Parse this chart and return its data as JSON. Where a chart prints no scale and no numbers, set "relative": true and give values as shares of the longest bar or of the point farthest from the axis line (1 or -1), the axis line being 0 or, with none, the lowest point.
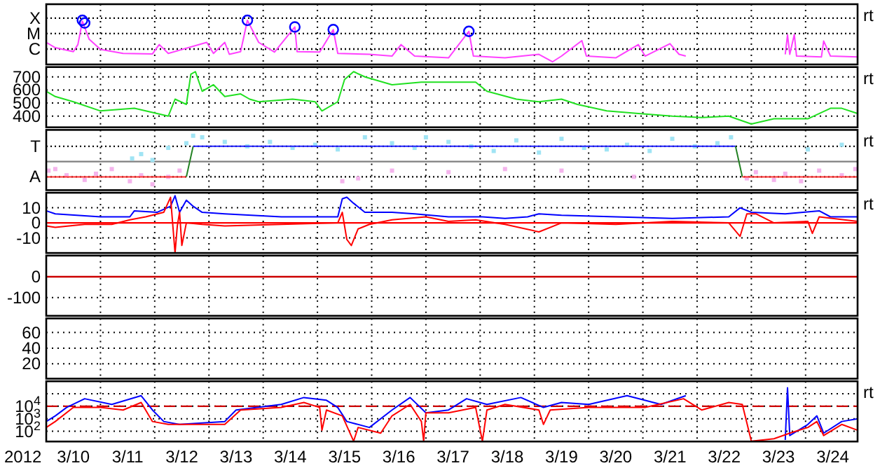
{
  "chart_data": [
    {
      "type": "line",
      "relative": true,
      "grid": "x",
      "tick_labels": false,
      "xlim": [
        "2012-03-10T00:00",
        "2012-03-24T23:00"
      ],
      "xticks": [
        {
          "value": "2012-03-11T00:00",
          "label": null
        },
        {
          "value": "2012-03-12T00:00",
          "label": null
        },
        {
          "value": "2012-03-13T00:00",
          "label": null
        },
        {
          "value": "2012-03-14T00:00",
          "label": null
        },
        {
          "value": "2012-03-15T00:00",
          "label": null
        },
        {
          "value": "2012-03-16T00:00",
          "label": null
        },
        {
          "value": "2012-03-17T00:00",
          "label": null
        },
        {
          "value": "2012-03-18T00:00",
          "label": null
        },
        {
          "value": "2012-03-19T00:00",
          "label": null
        },
        {
          "value": "2012-03-20T00:00",
          "label": null
        },
        {
          "value": "2012-03-21T00:00",
          "label": null
        },
        {
          "value": "2012-03-22T00:00",
          "label": null
        },
        {
          "value": "2012-03-23T00:00",
          "label": null
        },
        {
          "value": "2012-03-24T00:00",
          "label": null
        }
      ],
      "annotations": [
        "rt"
      ],
      "ref_lines": [
        {
          "axis": "y",
          "value": 0.35,
          "label": "C",
          "color": "#000000",
          "line_style": "dotted"
        },
        {
          "axis": "y",
          "value": 0.7,
          "label": "M",
          "color": "#000000",
          "line_style": "dotted"
        },
        {
          "axis": "y",
          "value": 1.05,
          "label": "X",
          "color": "#000000",
          "line_style": "dotted"
        }
      ],
      "series": [
        {
          "color": "#ff40ff",
          "x": [
            "2012-03-10T00:00",
            "2012-03-10T04:00",
            "2012-03-10T12:00",
            "2012-03-10T14:00",
            "2012-03-10T16:00",
            "2012-03-10T19:00",
            "2012-03-11T00:00",
            "2012-03-11T10:00",
            "2012-03-11T23:00",
            "2012-03-12T02:00",
            "2012-03-12T06:00",
            "2012-03-12T23:00",
            "2012-03-13T02:00",
            "2012-03-13T07:00",
            "2012-03-13T09:00",
            "2012-03-13T14:00",
            "2012-03-13T17:00",
            "2012-03-13T22:00",
            "2012-03-14T05:00",
            "2012-03-14T14:00",
            "2012-03-14T15:00",
            "2012-03-15T01:00",
            "2012-03-15T07:00",
            "2012-03-15T09:00",
            "2012-03-15T23:00",
            "2012-03-16T09:00",
            "2012-03-16T13:00",
            "2012-03-16T19:00",
            "2012-03-17T10:00",
            "2012-03-17T19:00",
            "2012-03-17T21:00",
            "2012-03-18T11:00",
            "2012-03-19T02:00",
            "2012-03-19T08:00",
            "2012-03-19T12:00",
            "2012-03-19T21:00",
            "2012-03-19T23:00",
            "2012-03-20T12:00",
            "2012-03-20T22:00",
            "2012-03-21T01:00",
            "2012-03-21T12:00",
            "2012-03-21T16:00",
            "2012-03-21T19:00",
            "2012-03-22T14:00",
            "2012-03-23T15:00",
            "2012-03-23T16:00",
            "2012-03-23T17:00",
            "2012-03-23T19:00",
            "2012-03-23T20:00",
            "2012-03-24T07:00",
            "2012-03-24T08:00",
            "2012-03-24T11:00",
            "2012-03-24T23:00"
          ],
          "values": [
            0.5,
            0.38,
            0.29,
            0.45,
            0.98,
            0.57,
            0.34,
            0.25,
            0.24,
            0.45,
            0.25,
            0.5,
            0.25,
            0.5,
            0.23,
            0.29,
            1,
            0.5,
            0.28,
            0.85,
            0.29,
            0.28,
            0.79,
            0.25,
            0.23,
            0.19,
            0.45,
            0.19,
            0.15,
            0.75,
            0.19,
            0.15,
            0.23,
            0.06,
            0.19,
            0.54,
            0.19,
            0.15,
            0.45,
            0.19,
            0.47,
            0.23,
            0.19,
            null,
            0.23,
            0.67,
            0.23,
            0.68,
            0.19,
            0.17,
            0.53,
            0.19,
            0.17
          ]
        },
        {
          "type": "scatter",
          "marker": "circle",
          "color": "#0000ff",
          "x": [
            "2012-03-10T16:00",
            "2012-03-10T17:00",
            "2012-03-13T17:00",
            "2012-03-14T14:00",
            "2012-03-15T07:00",
            "2012-03-17T19:00"
          ],
          "values": [
            1,
            0.94,
            1,
            0.85,
            0.79,
            0.75
          ]
        }
      ]
    },
    {
      "type": "line",
      "grid": true,
      "tick_labels": "y",
      "xlim": [
        "2012-03-10T00:00",
        "2012-03-24T23:00"
      ],
      "xticks": [
        {
          "value": "2012-03-11T00:00",
          "label": null
        },
        {
          "value": "2012-03-12T00:00",
          "label": null
        },
        {
          "value": "2012-03-13T00:00",
          "label": null
        },
        {
          "value": "2012-03-14T00:00",
          "label": null
        },
        {
          "value": "2012-03-15T00:00",
          "label": null
        },
        {
          "value": "2012-03-16T00:00",
          "label": null
        },
        {
          "value": "2012-03-17T00:00",
          "label": null
        },
        {
          "value": "2012-03-18T00:00",
          "label": null
        },
        {
          "value": "2012-03-19T00:00",
          "label": null
        },
        {
          "value": "2012-03-20T00:00",
          "label": null
        },
        {
          "value": "2012-03-21T00:00",
          "label": null
        },
        {
          "value": "2012-03-22T00:00",
          "label": null
        },
        {
          "value": "2012-03-23T00:00",
          "label": null
        },
        {
          "value": "2012-03-24T00:00",
          "label": null
        }
      ],
      "ylim": [
        315,
        775
      ],
      "yticks": [
        400,
        500,
        600,
        700
      ],
      "annotations": [
        "rt"
      ],
      "series": [
        {
          "color": "#20e020",
          "x": [
            "2012-03-10T00:00",
            "2012-03-10T04:00",
            "2012-03-10T12:00",
            "2012-03-11T00:00",
            "2012-03-11T15:00",
            "2012-03-12T01:00",
            "2012-03-12T06:00",
            "2012-03-12T09:00",
            "2012-03-12T14:00",
            "2012-03-12T16:00",
            "2012-03-12T18:00",
            "2012-03-12T21:00",
            "2012-03-13T02:00",
            "2012-03-13T07:00",
            "2012-03-13T14:00",
            "2012-03-13T18:00",
            "2012-03-13T22:00",
            "2012-03-14T13:00",
            "2012-03-14T23:00",
            "2012-03-15T02:00",
            "2012-03-15T09:00",
            "2012-03-15T12:00",
            "2012-03-15T16:00",
            "2012-03-15T21:00",
            "2012-03-16T09:00",
            "2012-03-16T22:00",
            "2012-03-17T10:00",
            "2012-03-17T22:00",
            "2012-03-18T03:00",
            "2012-03-18T16:00",
            "2012-03-19T02:00",
            "2012-03-19T12:00",
            "2012-03-19T19:00",
            "2012-03-20T08:00",
            "2012-03-20T22:00",
            "2012-03-21T13:00",
            "2012-03-22T02:00",
            "2012-03-22T14:00",
            "2012-03-23T00:00",
            "2012-03-23T10:00",
            "2012-03-24T01:00",
            "2012-03-24T11:00",
            "2012-03-24T16:00",
            "2012-03-24T23:00"
          ],
          "values": [
            590,
            550,
            510,
            440,
            460,
            420,
            400,
            530,
            490,
            720,
            740,
            590,
            640,
            550,
            570,
            530,
            510,
            530,
            510,
            440,
            510,
            680,
            740,
            700,
            640,
            660,
            660,
            660,
            590,
            530,
            510,
            530,
            490,
            440,
            420,
            400,
            390,
            400,
            340,
            380,
            380,
            460,
            460,
            420
          ]
        }
      ]
    },
    {
      "type": "line",
      "relative": true,
      "grid": "x",
      "tick_labels": false,
      "xlim": [
        "2012-03-10T00:00",
        "2012-03-24T23:00"
      ],
      "xticks": [
        {
          "value": "2012-03-11T00:00",
          "label": null
        },
        {
          "value": "2012-03-12T00:00",
          "label": null
        },
        {
          "value": "2012-03-13T00:00",
          "label": null
        },
        {
          "value": "2012-03-14T00:00",
          "label": null
        },
        {
          "value": "2012-03-15T00:00",
          "label": null
        },
        {
          "value": "2012-03-16T00:00",
          "label": null
        },
        {
          "value": "2012-03-17T00:00",
          "label": null
        },
        {
          "value": "2012-03-18T00:00",
          "label": null
        },
        {
          "value": "2012-03-19T00:00",
          "label": null
        },
        {
          "value": "2012-03-20T00:00",
          "label": null
        },
        {
          "value": "2012-03-21T00:00",
          "label": null
        },
        {
          "value": "2012-03-22T00:00",
          "label": null
        },
        {
          "value": "2012-03-23T00:00",
          "label": null
        },
        {
          "value": "2012-03-24T00:00",
          "label": null
        }
      ],
      "annotations": [
        "rt"
      ],
      "ref_lines": [
        {
          "axis": "y",
          "value": 0,
          "color": "#808080"
        },
        {
          "axis": "y",
          "value": 0.59,
          "label": "T",
          "color": "#000000",
          "line_style": "dotted"
        },
        {
          "axis": "y",
          "value": -0.59,
          "label": "A",
          "color": "#000000",
          "line_style": "dotted"
        }
      ],
      "series": [
        {
          "type": "scatter",
          "marker": "square",
          "color": "#a0e4f4",
          "x": [
            "2012-03-11T14:00",
            "2012-03-11T18:00",
            "2012-03-11T23:00",
            "2012-03-12T06:00",
            "2012-03-12T14:00",
            "2012-03-12T17:00",
            "2012-03-12T21:00",
            "2012-03-13T07:00",
            "2012-03-13T17:00",
            "2012-03-14T03:00",
            "2012-03-14T13:00",
            "2012-03-14T23:00",
            "2012-03-15T09:00",
            "2012-03-15T21:00",
            "2012-03-16T09:00",
            "2012-03-16T19:00",
            "2012-03-17T00:00",
            "2012-03-17T10:00",
            "2012-03-17T20:00",
            "2012-03-18T06:00",
            "2012-03-18T16:00",
            "2012-03-19T02:00",
            "2012-03-19T12:00",
            "2012-03-19T22:00",
            "2012-03-20T08:00",
            "2012-03-20T17:00",
            "2012-03-21T03:00",
            "2012-03-21T13:00",
            "2012-03-21T23:00",
            "2012-03-22T09:00",
            "2012-03-22T15:00",
            "2012-03-24T01:00",
            "2012-03-24T16:00"
          ],
          "values": [
            0.12,
            0.29,
            0.06,
            0.53,
            0.71,
            1,
            0.94,
            0.76,
            0.59,
            0.76,
            0.53,
            0.65,
            0.47,
            0.94,
            0.71,
            0.53,
            0.94,
            0.76,
            0.59,
            0.41,
            0.82,
            0.35,
            0.88,
            0.53,
            0.47,
            0.65,
            0.41,
            0.88,
            0.59,
            0.71,
            0.94,
            0.47,
            0.65
          ]
        },
        {
          "type": "scatter",
          "marker": "square",
          "color": "#f4b4ec",
          "x": [
            "2012-03-10T01:00",
            "2012-03-10T04:00",
            "2012-03-10T09:00",
            "2012-03-10T17:00",
            "2012-03-10T22:00",
            "2012-03-11T05:00",
            "2012-03-11T13:00",
            "2012-03-11T18:00",
            "2012-03-11T23:00",
            "2012-03-12T06:00",
            "2012-03-12T11:00",
            "2012-03-15T11:00",
            "2012-03-15T18:00",
            "2012-03-16T09:00",
            "2012-03-17T10:00",
            "2012-03-18T11:00",
            "2012-03-19T12:00",
            "2012-03-20T20:00",
            "2012-03-22T22:00",
            "2012-03-23T02:00",
            "2012-03-23T10:00",
            "2012-03-23T15:00",
            "2012-03-23T22:00",
            "2012-03-24T06:00",
            "2012-03-24T16:00",
            "2012-03-24T22:00"
          ],
          "values": [
            -0.35,
            -0.29,
            -0.53,
            -0.71,
            -0.47,
            -0.29,
            -0.76,
            -0.53,
            -0.88,
            -0.59,
            -0.35,
            -0.76,
            -0.65,
            -0.35,
            -0.41,
            -0.29,
            -0.35,
            -0.59,
            -0.65,
            -0.41,
            -0.71,
            -0.47,
            -0.76,
            -0.35,
            -0.53,
            -0.29
          ]
        },
        {
          "color": "#ff3030",
          "x": [
            "2012-03-10T00:00",
            "2012-03-12T14:00"
          ],
          "values": [
            -0.59,
            -0.59
          ]
        },
        {
          "color": "#208020",
          "x": [
            "2012-03-12T14:00",
            "2012-03-12T17:00"
          ],
          "values": [
            -0.59,
            0.59
          ]
        },
        {
          "color": "#2020ff",
          "x": [
            "2012-03-12T17:00",
            "2012-03-22T17:00"
          ],
          "values": [
            0.59,
            0.59
          ]
        },
        {
          "color": "#208020",
          "x": [
            "2012-03-22T17:00",
            "2012-03-22T20:00"
          ],
          "values": [
            0.59,
            -0.59
          ]
        },
        {
          "color": "#ff3030",
          "x": [
            "2012-03-22T20:00",
            "2012-03-24T23:00"
          ],
          "values": [
            -0.59,
            -0.59
          ]
        }
      ]
    },
    {
      "type": "line",
      "grid": true,
      "tick_labels": "y",
      "xlim": [
        "2012-03-10T00:00",
        "2012-03-24T23:00"
      ],
      "xticks": [
        {
          "value": "2012-03-11T00:00",
          "label": null
        },
        {
          "value": "2012-03-12T00:00",
          "label": null
        },
        {
          "value": "2012-03-13T00:00",
          "label": null
        },
        {
          "value": "2012-03-14T00:00",
          "label": null
        },
        {
          "value": "2012-03-15T00:00",
          "label": null
        },
        {
          "value": "2012-03-16T00:00",
          "label": null
        },
        {
          "value": "2012-03-17T00:00",
          "label": null
        },
        {
          "value": "2012-03-18T00:00",
          "label": null
        },
        {
          "value": "2012-03-19T00:00",
          "label": null
        },
        {
          "value": "2012-03-20T00:00",
          "label": null
        },
        {
          "value": "2012-03-21T00:00",
          "label": null
        },
        {
          "value": "2012-03-22T00:00",
          "label": null
        },
        {
          "value": "2012-03-23T00:00",
          "label": null
        },
        {
          "value": "2012-03-24T00:00",
          "label": null
        }
      ],
      "ylim": [
        -20,
        20
      ],
      "yticks": [
        -10,
        0,
        10
      ],
      "annotations": [
        "rt"
      ],
      "ref_lines": [
        {
          "axis": "y",
          "value": 0,
          "color": "#ff0000"
        }
      ],
      "series": [
        {
          "color": "#0000ff",
          "x": [
            "2012-03-10T00:00",
            "2012-03-10T04:00",
            "2012-03-11T00:00",
            "2012-03-11T13:00",
            "2012-03-11T15:00",
            "2012-03-12T01:00",
            "2012-03-12T07:00",
            "2012-03-12T09:00",
            "2012-03-12T11:00",
            "2012-03-12T14:00",
            "2012-03-12T17:00",
            "2012-03-12T21:00",
            "2012-03-13T07:00",
            "2012-03-14T08:00",
            "2012-03-15T09:00",
            "2012-03-15T11:00",
            "2012-03-15T13:00",
            "2012-03-15T16:00",
            "2012-03-15T21:00",
            "2012-03-16T09:00",
            "2012-03-16T19:00",
            "2012-03-17T10:00",
            "2012-03-18T01:00",
            "2012-03-18T11:00",
            "2012-03-18T21:00",
            "2012-03-19T02:00",
            "2012-03-19T12:00",
            "2012-03-20T12:00",
            "2012-03-21T13:00",
            "2012-03-22T14:00",
            "2012-03-22T19:00",
            "2012-03-23T00:00",
            "2012-03-23T15:00",
            "2012-03-24T06:00",
            "2012-03-24T11:00",
            "2012-03-24T23:00"
          ],
          "values": [
            8,
            6,
            4,
            4,
            8,
            7,
            11,
            18,
            7,
            15,
            11,
            7,
            6,
            4,
            4,
            16,
            17,
            13,
            7,
            7,
            6,
            4,
            4,
            3,
            4,
            6,
            5,
            4,
            3,
            4,
            10,
            7,
            6,
            8,
            4,
            4
          ]
        },
        {
          "color": "#ff0000",
          "x": [
            "2012-03-10T00:00",
            "2012-03-10T04:00",
            "2012-03-10T17:00",
            "2012-03-11T05:00",
            "2012-03-11T13:00",
            "2012-03-11T20:00",
            "2012-03-12T04:00",
            "2012-03-12T07:00",
            "2012-03-12T09:00",
            "2012-03-12T10:00",
            "2012-03-12T11:00",
            "2012-03-12T12:00",
            "2012-03-12T14:00",
            "2012-03-12T21:00",
            "2012-03-13T07:00",
            "2012-03-14T08:00",
            "2012-03-15T09:00",
            "2012-03-15T11:00",
            "2012-03-15T13:00",
            "2012-03-15T15:00",
            "2012-03-15T18:00",
            "2012-03-15T23:00",
            "2012-03-16T09:00",
            "2012-03-17T00:00",
            "2012-03-17T10:00",
            "2012-03-17T22:00",
            "2012-03-18T11:00",
            "2012-03-19T02:00",
            "2012-03-19T12:00",
            "2012-03-20T12:00",
            "2012-03-21T13:00",
            "2012-03-22T14:00",
            "2012-03-22T19:00",
            "2012-03-22T22:00",
            "2012-03-23T02:00",
            "2012-03-23T10:00",
            "2012-03-24T01:00",
            "2012-03-24T03:00",
            "2012-03-24T06:00",
            "2012-03-24T23:00"
          ],
          "values": [
            -2,
            -3,
            -1,
            -1,
            2,
            4,
            7,
            17,
            -20,
            -2,
            7,
            -15,
            0,
            -1,
            -2,
            -1,
            0,
            7,
            -11,
            -15,
            -4,
            -1,
            2,
            4,
            1,
            2,
            -1,
            -6,
            0,
            -1,
            1,
            0,
            -9,
            6,
            6,
            0,
            1,
            -7,
            4,
            1
          ]
        }
      ]
    },
    {
      "type": "line",
      "grid": true,
      "tick_labels": "y",
      "xlim": [
        "2012-03-10T00:00",
        "2012-03-24T23:00"
      ],
      "xticks": [
        {
          "value": "2012-03-11T00:00",
          "label": null
        },
        {
          "value": "2012-03-12T00:00",
          "label": null
        },
        {
          "value": "2012-03-13T00:00",
          "label": null
        },
        {
          "value": "2012-03-14T00:00",
          "label": null
        },
        {
          "value": "2012-03-15T00:00",
          "label": null
        },
        {
          "value": "2012-03-16T00:00",
          "label": null
        },
        {
          "value": "2012-03-17T00:00",
          "label": null
        },
        {
          "value": "2012-03-18T00:00",
          "label": null
        },
        {
          "value": "2012-03-19T00:00",
          "label": null
        },
        {
          "value": "2012-03-20T00:00",
          "label": null
        },
        {
          "value": "2012-03-21T00:00",
          "label": null
        },
        {
          "value": "2012-03-22T00:00",
          "label": null
        },
        {
          "value": "2012-03-23T00:00",
          "label": null
        },
        {
          "value": "2012-03-24T00:00",
          "label": null
        }
      ],
      "ylim": [
        -188,
        102
      ],
      "yticks": [
        -100,
        0
      ],
      "ref_lines": [
        {
          "axis": "y",
          "value": 0,
          "color": "#cc0000"
        }
      ]
    },
    {
      "type": "line",
      "grid": true,
      "tick_labels": "y",
      "xlim": [
        "2012-03-10T00:00",
        "2012-03-24T23:00"
      ],
      "xticks": [
        {
          "value": "2012-03-11T00:00",
          "label": null
        },
        {
          "value": "2012-03-12T00:00",
          "label": null
        },
        {
          "value": "2012-03-13T00:00",
          "label": null
        },
        {
          "value": "2012-03-14T00:00",
          "label": null
        },
        {
          "value": "2012-03-15T00:00",
          "label": null
        },
        {
          "value": "2012-03-16T00:00",
          "label": null
        },
        {
          "value": "2012-03-17T00:00",
          "label": null
        },
        {
          "value": "2012-03-18T00:00",
          "label": null
        },
        {
          "value": "2012-03-19T00:00",
          "label": null
        },
        {
          "value": "2012-03-20T00:00",
          "label": null
        },
        {
          "value": "2012-03-21T00:00",
          "label": null
        },
        {
          "value": "2012-03-22T00:00",
          "label": null
        },
        {
          "value": "2012-03-23T00:00",
          "label": null
        },
        {
          "value": "2012-03-24T00:00",
          "label": null
        }
      ],
      "ylim": [
        1,
        78
      ],
      "yticks": [
        20,
        40,
        60
      ]
    },
    {
      "type": "line",
      "log": "y",
      "grid": true,
      "xlabel": "2012",
      "xlim": [
        "2012-03-10T00:00",
        "2012-03-24T23:00"
      ],
      "xticks": [
        {
          "value": "2012-03-10T12:00",
          "label": "3/10"
        },
        {
          "value": "2012-03-11T00:00",
          "label": null
        },
        {
          "value": "2012-03-11T12:00",
          "label": "3/11"
        },
        {
          "value": "2012-03-12T00:00",
          "label": null
        },
        {
          "value": "2012-03-12T12:00",
          "label": "3/12"
        },
        {
          "value": "2012-03-13T00:00",
          "label": null
        },
        {
          "value": "2012-03-13T12:00",
          "label": "3/13"
        },
        {
          "value": "2012-03-14T00:00",
          "label": null
        },
        {
          "value": "2012-03-14T12:00",
          "label": "3/14"
        },
        {
          "value": "2012-03-15T00:00",
          "label": null
        },
        {
          "value": "2012-03-15T12:00",
          "label": "3/15"
        },
        {
          "value": "2012-03-16T00:00",
          "label": null
        },
        {
          "value": "2012-03-16T12:00",
          "label": "3/16"
        },
        {
          "value": "2012-03-17T00:00",
          "label": null
        },
        {
          "value": "2012-03-17T12:00",
          "label": "3/17"
        },
        {
          "value": "2012-03-18T00:00",
          "label": null
        },
        {
          "value": "2012-03-18T12:00",
          "label": "3/18"
        },
        {
          "value": "2012-03-19T00:00",
          "label": null
        },
        {
          "value": "2012-03-19T12:00",
          "label": "3/19"
        },
        {
          "value": "2012-03-20T00:00",
          "label": null
        },
        {
          "value": "2012-03-20T12:00",
          "label": "3/20"
        },
        {
          "value": "2012-03-21T00:00",
          "label": null
        },
        {
          "value": "2012-03-21T12:00",
          "label": "3/21"
        },
        {
          "value": "2012-03-22T00:00",
          "label": null
        },
        {
          "value": "2012-03-22T12:00",
          "label": "3/22"
        },
        {
          "value": "2012-03-23T00:00",
          "label": null
        },
        {
          "value": "2012-03-23T12:00",
          "label": "3/23"
        },
        {
          "value": "2012-03-24T00:00",
          "label": null
        },
        {
          "value": "2012-03-24T12:00",
          "label": "3/24"
        }
      ],
      "ylim": [
        15,
        1000000
      ],
      "yticks": [
        {
          "value": 100,
          "label": "10$^{2}$"
        },
        {
          "value": 1000,
          "label": "10$^{3}$"
        },
        {
          "value": 10000,
          "label": "10$^{4}$"
        },
        {
          "value": 100000,
          "label": null
        }
      ],
      "annotations": [
        "rt"
      ],
      "ref_lines": [
        {
          "axis": "y",
          "value": 10000,
          "color": "#cc0000",
          "line_style": "dashed"
        }
      ],
      "series": [
        {
          "color": "#0000ff",
          "x": [
            "2012-03-10T00:00",
            "2012-03-10T04:00",
            "2012-03-10T09:00",
            "2012-03-10T17:00",
            "2012-03-11T05:00",
            "2012-03-11T18:00",
            "2012-03-11T23:00",
            "2012-03-12T04:00",
            "2012-03-12T11:00",
            "2012-03-13T07:00",
            "2012-03-13T12:00",
            "2012-03-14T08:00",
            "2012-03-14T18:00",
            "2012-03-15T04:00",
            "2012-03-15T09:00",
            "2012-03-15T13:00",
            "2012-03-15T23:00",
            "2012-03-16T09:00",
            "2012-03-16T17:00",
            "2012-03-17T00:00",
            "2012-03-17T10:00",
            "2012-03-17T18:00",
            "2012-03-18T03:00",
            "2012-03-18T18:00",
            "2012-03-19T04:00",
            "2012-03-19T12:00",
            "2012-03-20T00:00",
            "2012-03-20T17:00",
            "2012-03-21T08:00",
            "2012-03-21T19:00",
            "2012-03-22T14:00",
            "2012-03-23T15:00",
            "2012-03-23T16:00",
            "2012-03-23T17:00",
            "2012-03-24T01:00",
            "2012-03-24T05:00",
            "2012-03-24T08:00",
            "2012-03-24T16:00",
            "2012-03-24T23:00"
          ],
          "values": [
            600,
            1700,
            8000,
            40000,
            14000,
            70000,
            5000,
            600,
            350,
            600,
            5000,
            14000,
            50000,
            30000,
            8000,
            600,
            200,
            5000,
            50000,
            3000,
            5000,
            40000,
            14000,
            50000,
            8000,
            20000,
            14000,
            70000,
            14000,
            70000,
            null,
            20,
            300000,
            45,
            350,
            1700,
            70,
            600,
            1000
          ]
        },
        {
          "color": "#ff0000",
          "x": [
            "2012-03-10T00:00",
            "2012-03-10T04:00",
            "2012-03-10T12:00",
            "2012-03-11T00:00",
            "2012-03-11T10:00",
            "2012-03-11T18:00",
            "2012-03-11T23:00",
            "2012-03-12T06:00",
            "2012-03-13T07:00",
            "2012-03-13T14:00",
            "2012-03-14T08:00",
            "2012-03-14T18:00",
            "2012-03-15T01:00",
            "2012-03-15T02:00",
            "2012-03-15T04:00",
            "2012-03-15T11:00",
            "2012-03-15T16:00",
            "2012-03-15T18:00",
            "2012-03-16T04:00",
            "2012-03-16T09:00",
            "2012-03-16T17:00",
            "2012-03-16T22:00",
            "2012-03-16T23:00",
            "2012-03-17T00:00",
            "2012-03-17T10:00",
            "2012-03-17T22:00",
            "2012-03-18T01:00",
            "2012-03-18T03:00",
            "2012-03-18T11:00",
            "2012-03-19T02:00",
            "2012-03-19T04:00",
            "2012-03-19T07:00",
            "2012-03-20T00:00",
            "2012-03-21T01:00",
            "2012-03-21T18:00",
            "2012-03-22T02:00",
            "2012-03-22T14:00",
            "2012-03-22T20:00",
            "2012-03-23T00:00",
            "2012-03-23T10:00",
            "2012-03-23T17:00",
            "2012-03-24T01:00",
            "2012-03-24T05:00",
            "2012-03-24T08:00",
            "2012-03-24T16:00",
            "2012-03-24T23:00"
          ],
          "values": [
            200,
            600,
            8000,
            8000,
            5000,
            20000,
            600,
            350,
            350,
            5000,
            8000,
            20000,
            8000,
            120,
            5000,
            1700,
            16,
            200,
            70,
            1700,
            14000,
            600,
            16,
            3000,
            3000,
            8000,
            16,
            5000,
            14000,
            5000,
            350,
            5000,
            8000,
            8000,
            40000,
            5000,
            20000,
            14000,
            16,
            25,
            70,
            200,
            600,
            45,
            350,
            120
          ]
        }
      ]
    }
  ]
}
